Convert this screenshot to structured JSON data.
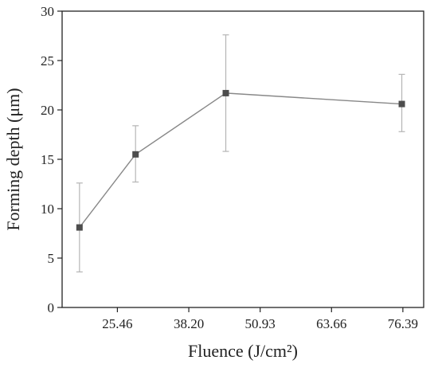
{
  "chart_data": {
    "type": "line",
    "xlabel": "Fluence (J/cm²)",
    "ylabel": "Forming depth (μm)",
    "xticks": [
      "25.46",
      "38.20",
      "50.93",
      "63.66",
      "76.39"
    ],
    "xtick_values": [
      25.46,
      38.2,
      50.93,
      63.66,
      76.39
    ],
    "yticks": [
      "0",
      "5",
      "10",
      "15",
      "20",
      "25",
      "30"
    ],
    "xlim": [
      15.6,
      80.1
    ],
    "ylim": [
      0,
      30
    ],
    "series": [
      {
        "points": [
          {
            "x": 18.7,
            "y": 8.1,
            "err_low": 3.6,
            "err_high": 12.6
          },
          {
            "x": 28.7,
            "y": 15.5,
            "err_low": 12.7,
            "err_high": 18.4
          },
          {
            "x": 44.8,
            "y": 21.7,
            "err_low": 15.8,
            "err_high": 27.6
          },
          {
            "x": 76.2,
            "y": 20.6,
            "err_low": 17.8,
            "err_high": 23.6
          }
        ]
      }
    ],
    "grid": false,
    "colors": {
      "line": "#888888",
      "marker": "#4d4d4d",
      "errorbar": "#b5b5b5",
      "axis": "#222222"
    }
  }
}
